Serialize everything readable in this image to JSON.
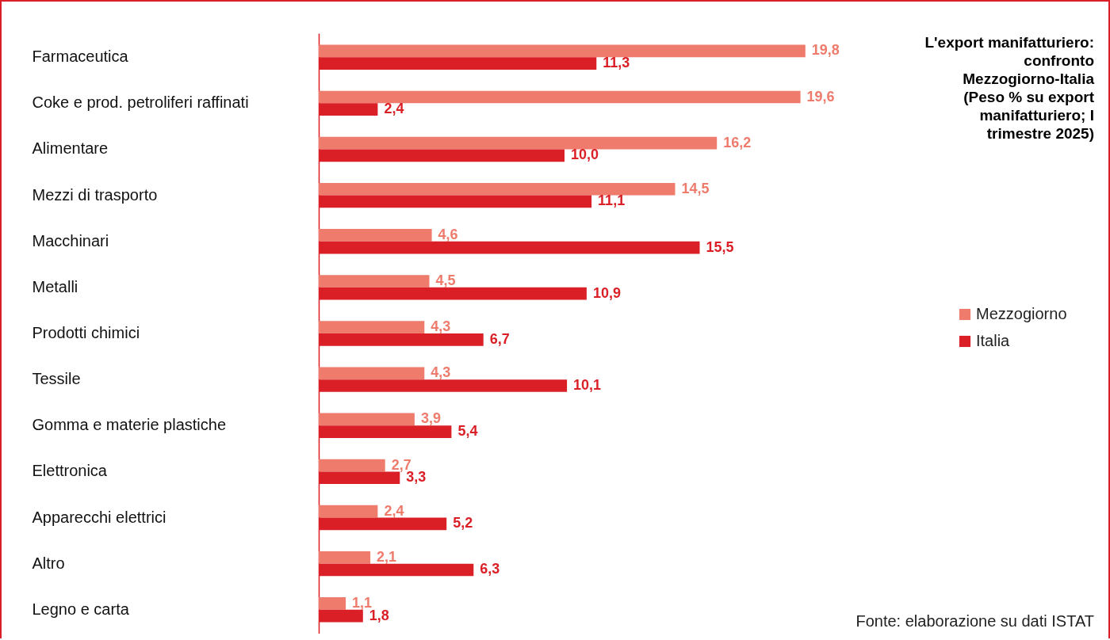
{
  "chart_data": {
    "type": "bar",
    "orientation": "horizontal",
    "title": "L'export manifatturiero: confronto Mezzogiorno-Italia (Peso % su export manifatturiero; I trimestre 2025)",
    "categories": [
      "Farmaceutica",
      "Coke e prod. petroliferi raffinati",
      "Alimentare",
      "Mezzi di trasporto",
      "Macchinari",
      "Metalli",
      "Prodotti chimici",
      "Tessile",
      "Gomma e materie plastiche",
      "Elettronica",
      "Apparecchi elettrici",
      "Altro",
      "Legno e carta"
    ],
    "series": [
      {
        "name": "Mezzogiorno",
        "color": "#ee7b6b",
        "values": [
          19.8,
          19.6,
          16.2,
          14.5,
          4.6,
          4.5,
          4.3,
          4.3,
          3.9,
          2.7,
          2.4,
          2.1,
          1.1
        ],
        "value_labels": [
          "19,8",
          "19,6",
          "16,2",
          "14,5",
          "4,6",
          "4,5",
          "4,3",
          "4,3",
          "3,9",
          "2,7",
          "2,4",
          "2,1",
          "1,1"
        ]
      },
      {
        "name": "Italia",
        "color": "#da1f26",
        "values": [
          11.3,
          2.4,
          10.0,
          11.1,
          15.5,
          10.9,
          6.7,
          10.1,
          5.4,
          3.3,
          5.2,
          6.3,
          1.8
        ],
        "value_labels": [
          "11,3",
          "2,4",
          "10,0",
          "11,1",
          "15,5",
          "10,9",
          "6,7",
          "10,1",
          "5,4",
          "3,3",
          "5,2",
          "6,3",
          "1,8"
        ]
      }
    ],
    "legend": "right",
    "tick_labels": "y",
    "annotations": [
      "Fonte: elaborazione su dati ISTAT"
    ]
  }
}
